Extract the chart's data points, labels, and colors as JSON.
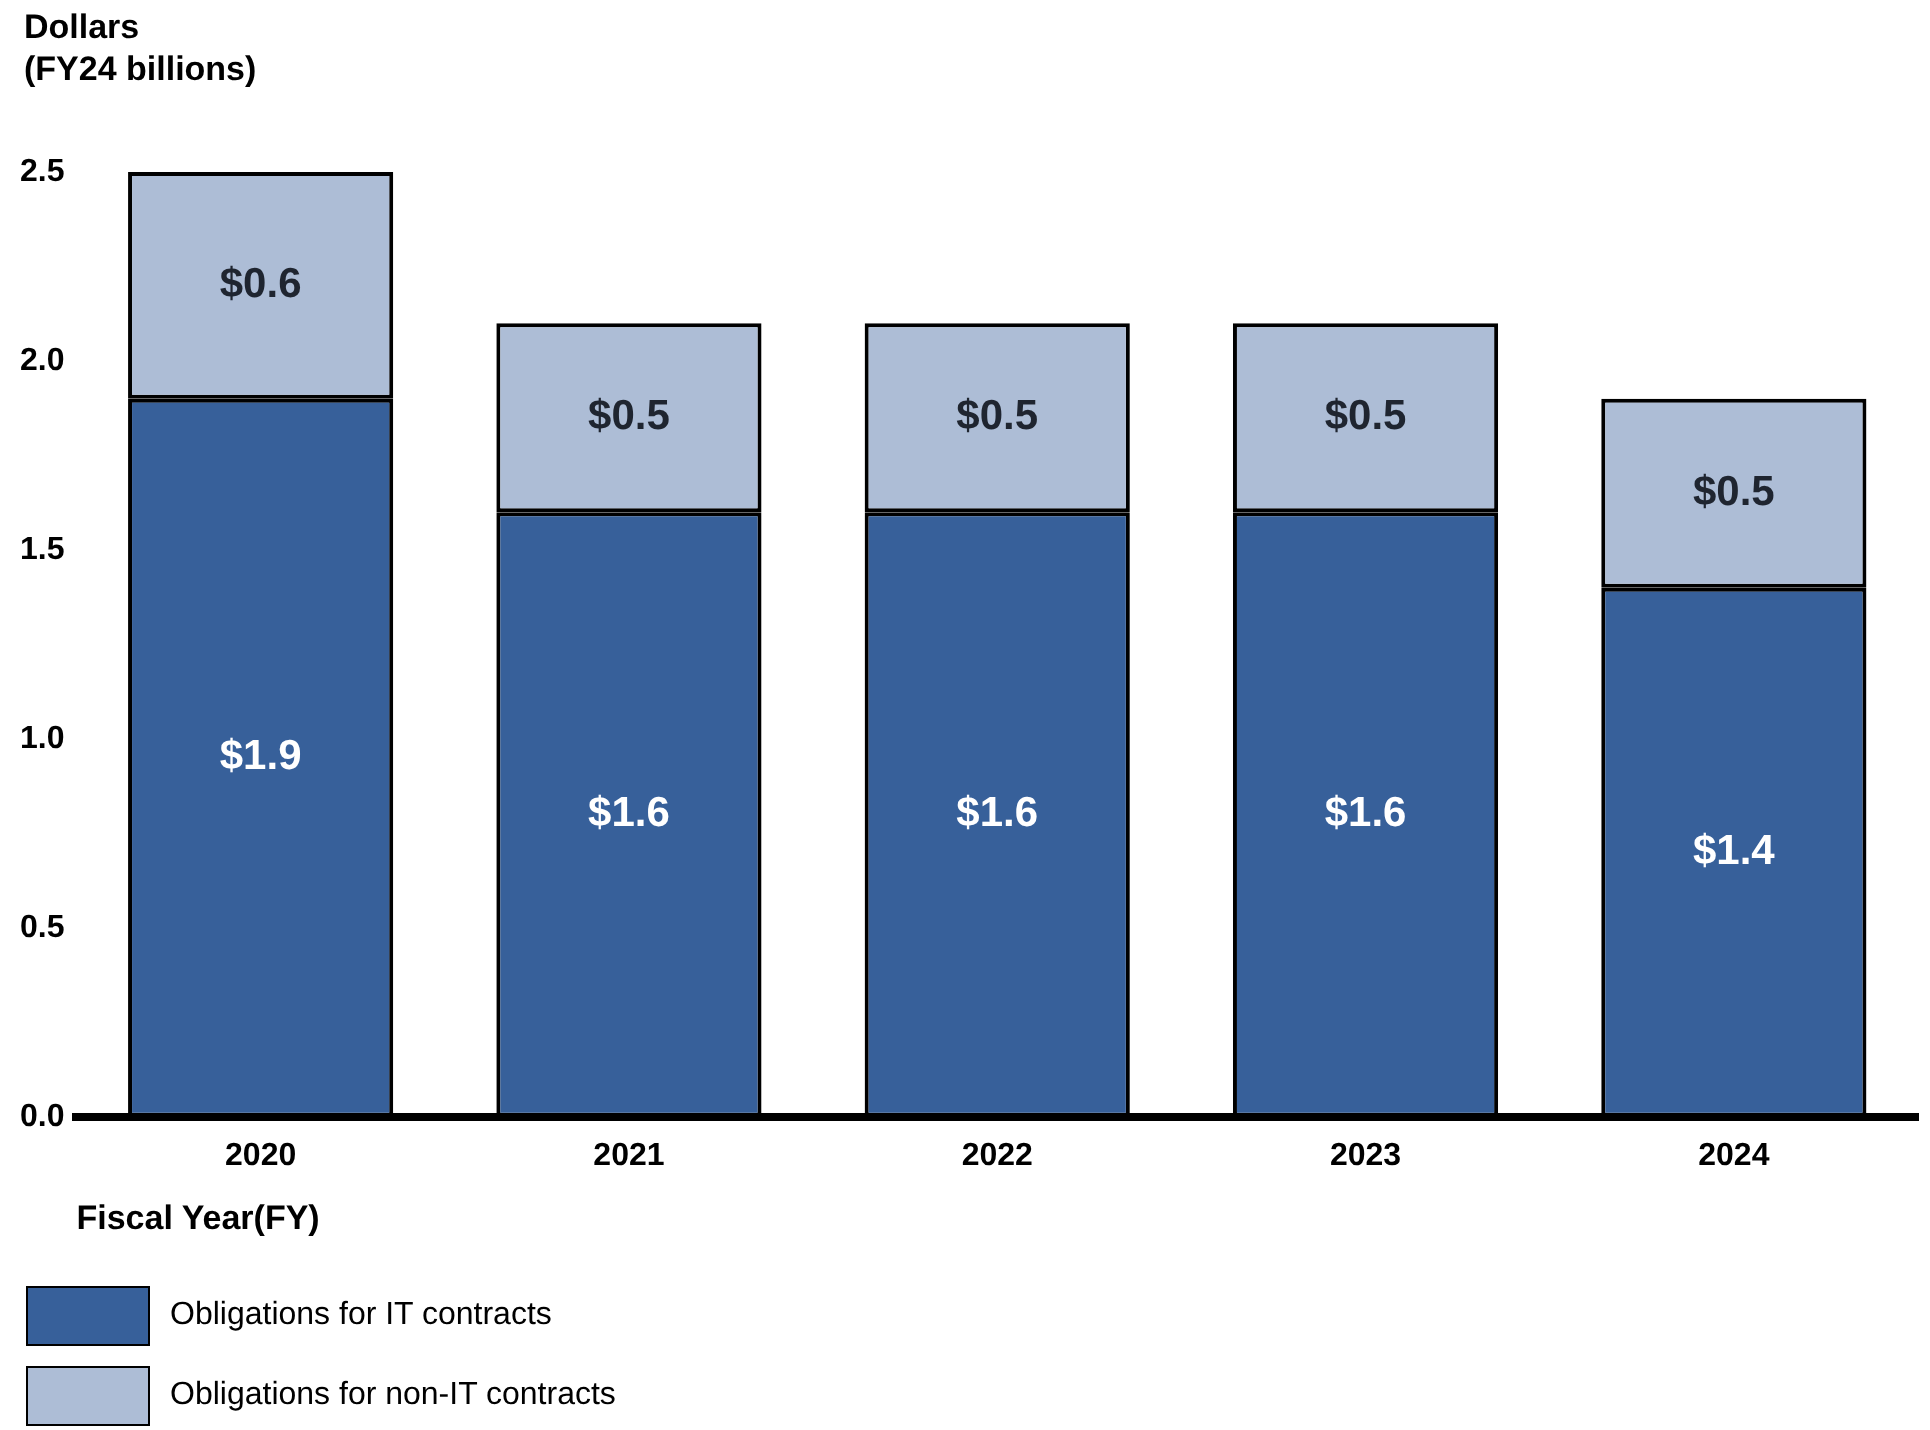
{
  "chart_data": {
    "type": "bar",
    "stacked": true,
    "ylabel": "Dollars\n(FY24 billions)",
    "xlabel": "Fiscal Year(FY)",
    "categories": [
      "2020",
      "2021",
      "2022",
      "2023",
      "2024"
    ],
    "series": [
      {
        "name": "Obligations for IT contracts",
        "color": "#37609a",
        "values": [
          1.9,
          1.6,
          1.6,
          1.6,
          1.4
        ],
        "value_labels": [
          "$1.9",
          "$1.6",
          "$1.6",
          "$1.6",
          "$1.4"
        ]
      },
      {
        "name": "Obligations for non-IT contracts",
        "color": "#adbdd6",
        "values": [
          0.6,
          0.5,
          0.5,
          0.5,
          0.5
        ],
        "value_labels": [
          "$0.6",
          "$0.5",
          "$0.5",
          "$0.5",
          "$0.5"
        ]
      }
    ],
    "ylim": [
      0,
      2.5
    ],
    "yticks": [
      {
        "value": 0,
        "label": "0.0"
      },
      0.5,
      {
        "value": 1,
        "label": "1.0"
      },
      1.5,
      {
        "value": 2,
        "label": "2.0"
      },
      2.5
    ],
    "grid": false,
    "legend": "bottom"
  }
}
